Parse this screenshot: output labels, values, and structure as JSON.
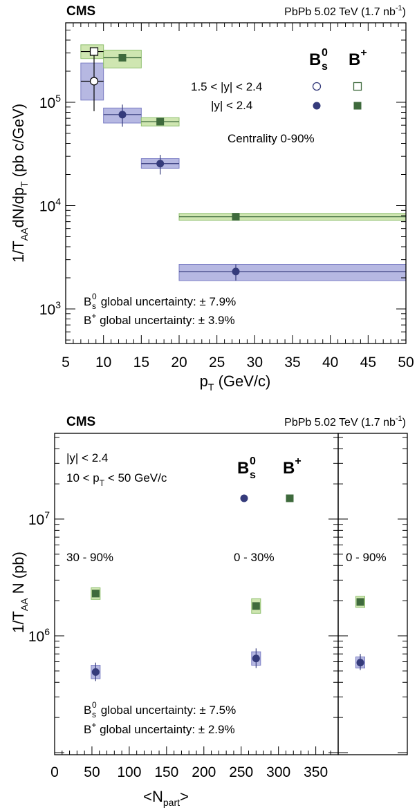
{
  "top": {
    "experiment": "CMS",
    "lumi": "PbPb 5.02 TeV (1.7 nb",
    "lumi_sup": "-1",
    "lumi_close": ")",
    "xlabel_main": "p",
    "xlabel_sub": "T",
    "xlabel_rest": " (GeV/c)",
    "ylabel_pre": "1/T",
    "ylabel_sub1": "AA",
    "ylabel_mid": "dN/dp",
    "ylabel_sub2": "T",
    "ylabel_post": " (pb c/GeV)",
    "legend_bs_main": "B",
    "legend_bs_sup": "0",
    "legend_bs_sub": "s",
    "legend_bp_main": "B",
    "legend_bp_sup": "+",
    "row1_label": "1.5 < |y| < 2.4",
    "row2_label": "|y| < 2.4",
    "centrality": "Centrality 0-90%",
    "gu1_pre": "B",
    "gu1_sup": "0",
    "gu1_sub": "s",
    "gu1_post": " global uncertainty: ± 7.9%",
    "gu2_pre": "B",
    "gu2_sup": "+",
    "gu2_post": " global uncertainty: ± 3.9%"
  },
  "bottom": {
    "experiment": "CMS",
    "lumi": "PbPb 5.02 TeV (1.7 nb",
    "lumi_sup": "-1",
    "lumi_close": ")",
    "xlabel_pre": "<N",
    "xlabel_sub": "part",
    "xlabel_post": ">",
    "ylabel_pre": "1/T",
    "ylabel_sub": "AA",
    "ylabel_post": " N (pb)",
    "ylabel_line1": "|y| < 2.4",
    "ylabel_line2_pre": "10 < p",
    "ylabel_line2_sub": "T",
    "ylabel_line2_post": " < 50 GeV/c",
    "legend_bs_main": "B",
    "legend_bs_sup": "0",
    "legend_bs_sub": "s",
    "legend_bp_main": "B",
    "legend_bp_sup": "+",
    "cent1": "30 - 90%",
    "cent2": "0 - 30%",
    "cent3": "0 - 90%",
    "gu1_pre": "B",
    "gu1_sup": "0",
    "gu1_sub": "s",
    "gu1_post": " global uncertainty: ± 7.5%",
    "gu2_pre": "B",
    "gu2_sup": "+",
    "gu2_post": " global uncertainty: ± 2.9%"
  },
  "colors": {
    "bs_marker": "#353b7b",
    "bs_band_fill": "#b6b8e2",
    "bs_band_edge": "#7a7dc4",
    "bp_marker": "#3e6a3c",
    "bp_band_fill": "#cfe6b1",
    "bp_band_edge": "#8fbf6e"
  },
  "chart_data": [
    {
      "type": "scatter",
      "log_y": true,
      "xlabel": "p_T (GeV/c)",
      "ylabel": "1/T_AA dN/dp_T (pb c/GeV)",
      "xlim": [
        5,
        50
      ],
      "ylim": [
        700,
        440000
      ],
      "x_ticks": [
        5,
        10,
        15,
        20,
        25,
        30,
        35,
        40,
        45,
        50
      ],
      "y_tick_labels": [
        "10^3",
        "10^4",
        "10^5"
      ],
      "legend_position": "top-right",
      "series": [
        {
          "name": "B0s 1.5<|y|<2.4",
          "marker": "open-circle",
          "points": [
            {
              "x": 8.75,
              "xlow": 7,
              "xhigh": 10,
              "y": 160000,
              "stat_low": 82000,
              "stat_high": 340000,
              "sys_low": 105000,
              "sys_high": 240000
            }
          ]
        },
        {
          "name": "B0s |y|<2.4",
          "marker": "filled-circle",
          "points": [
            {
              "x": 12.5,
              "xlow": 10,
              "xhigh": 15,
              "y": 76000,
              "stat_low": 58000,
              "stat_high": 95000,
              "sys_low": 63000,
              "sys_high": 88000
            },
            {
              "x": 17.5,
              "xlow": 15,
              "xhigh": 20,
              "y": 25500,
              "stat_low": 20000,
              "stat_high": 31000,
              "sys_low": 23000,
              "sys_high": 28500
            },
            {
              "x": 27.5,
              "xlow": 20,
              "xhigh": 50,
              "y": 2300,
              "stat_low": 1880,
              "stat_high": 2700,
              "sys_low": 1880,
              "sys_high": 2700
            }
          ]
        },
        {
          "name": "B+ 1.5<|y|<2.4",
          "marker": "open-square",
          "points": [
            {
              "x": 8.75,
              "xlow": 7,
              "xhigh": 10,
              "y": 310000,
              "stat_low": 285000,
              "stat_high": 340000,
              "sys_low": 265000,
              "sys_high": 360000
            }
          ]
        },
        {
          "name": "B+ |y|<2.4",
          "marker": "filled-square",
          "points": [
            {
              "x": 12.5,
              "xlow": 10,
              "xhigh": 15,
              "y": 270000,
              "stat_low": 255000,
              "stat_high": 285000,
              "sys_low": 215000,
              "sys_high": 320000
            },
            {
              "x": 17.5,
              "xlow": 15,
              "xhigh": 20,
              "y": 65000,
              "stat_low": 63000,
              "stat_high": 67000,
              "sys_low": 59000,
              "sys_high": 71000
            },
            {
              "x": 27.5,
              "xlow": 20,
              "xhigh": 50,
              "y": 7800,
              "stat_low": 7600,
              "stat_high": 8000,
              "sys_low": 7200,
              "sys_high": 8400
            }
          ]
        }
      ]
    },
    {
      "type": "scatter",
      "log_y": true,
      "xlabel": "<N_part>",
      "ylabel": "1/T_AA N (pb)",
      "xlim": [
        0,
        380
      ],
      "ylim": [
        200000,
        40000000
      ],
      "x_ticks": [
        0,
        50,
        100,
        150,
        200,
        250,
        300,
        350
      ],
      "y_tick_labels": [
        "10^6",
        "10^7"
      ],
      "legend_position": "top-right",
      "series": [
        {
          "name": "B0s",
          "marker": "filled-circle",
          "points": [
            {
              "x": 55,
              "y": 490000,
              "stat_low": 410000,
              "stat_high": 590000,
              "sys_low": 430000,
              "sys_high": 560000,
              "label": "30 - 90%"
            },
            {
              "x": 270,
              "y": 640000,
              "stat_low": 530000,
              "stat_high": 780000,
              "sys_low": 560000,
              "sys_high": 730000,
              "label": "0 - 30%"
            },
            {
              "x": "integrated",
              "y": 590000,
              "stat_low": 510000,
              "stat_high": 700000,
              "sys_low": 530000,
              "sys_high": 660000,
              "label": "0 - 90%"
            }
          ]
        },
        {
          "name": "B+",
          "marker": "filled-square",
          "points": [
            {
              "x": 55,
              "y": 2300000,
              "stat_low": 2220000,
              "stat_high": 2380000,
              "sys_low": 2050000,
              "sys_high": 2580000,
              "label": "30 - 90%"
            },
            {
              "x": 270,
              "y": 1800000,
              "stat_low": 1700000,
              "stat_high": 1900000,
              "sys_low": 1560000,
              "sys_high": 2080000,
              "label": "0 - 30%"
            },
            {
              "x": "integrated",
              "y": 1950000,
              "stat_low": 1880000,
              "stat_high": 2020000,
              "sys_low": 1750000,
              "sys_high": 2180000,
              "label": "0 - 90%"
            }
          ]
        }
      ]
    }
  ]
}
